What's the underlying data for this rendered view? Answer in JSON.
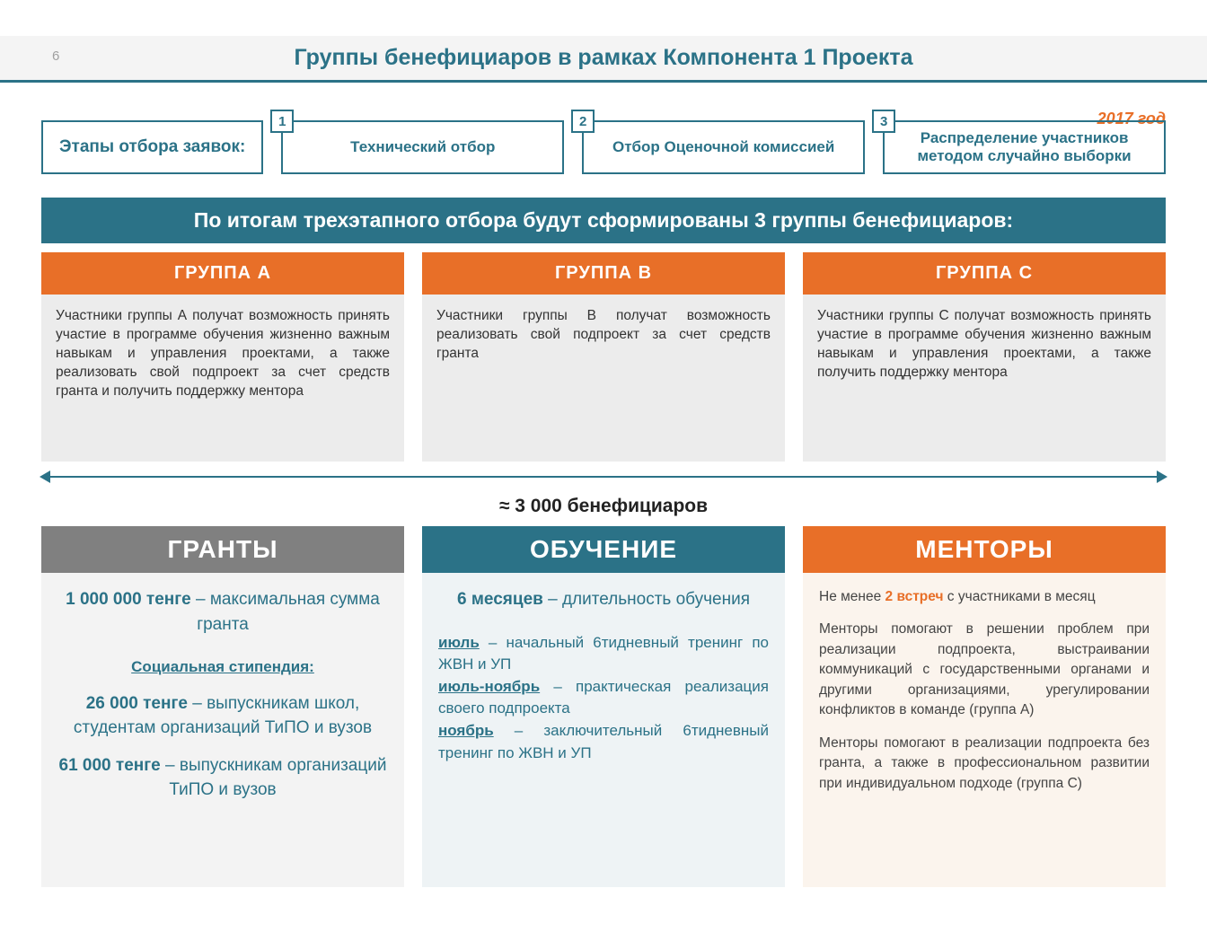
{
  "page_number": "6",
  "title": "Группы бенефициаров в рамках Компонента 1 Проекта",
  "year": "2017 год",
  "colors": {
    "teal": "#2b7287",
    "orange": "#e86f28",
    "gray": "#808080",
    "light_gray_bg": "#ececec",
    "grants_bg": "#f3f3f3",
    "training_bg": "#eef3f5",
    "mentors_bg": "#fbf4ed"
  },
  "stages": {
    "label": "Этапы отбора заявок:",
    "items": [
      {
        "num": "1",
        "text": "Технический отбор"
      },
      {
        "num": "2",
        "text": "Отбор Оценочной комиссией"
      },
      {
        "num": "3",
        "text": "Распределение участников методом случайно выборки"
      }
    ]
  },
  "banner": "По итогам трехэтапного отбора будут сформированы 3 группы бенефициаров:",
  "groups": [
    {
      "head": "ГРУППА  А",
      "body": "Участники группы А получат возможность принять участие в программе обучения жизненно важным навыкам и управления проектами, а также реализовать свой подпроект за счет средств гранта и получить поддержку ментора"
    },
    {
      "head": "ГРУППА  В",
      "body": "Участники группы В получат возможность реализовать свой подпроект за счет средств гранта"
    },
    {
      "head": "ГРУППА  С",
      "body": "Участники группы С получат возможность принять участие в программе обучения жизненно важным навыкам и управления проектами, а также получить поддержку ментора"
    }
  ],
  "arrow_label": "≈ 3 000 бенефициаров",
  "bottom": {
    "grants": {
      "head": "ГРАНТЫ",
      "line1_bold": "1 000 000 тенге",
      "line1_rest": " – максимальная сумма гранта",
      "stipend_label": "Социальная стипендия:",
      "line2_bold": "26 000 тенге",
      "line2_rest": " – выпускникам школ, студентам организаций ТиПО и вузов",
      "line3_bold": "61 000 тенге",
      "line3_rest": " – выпускникам организаций ТиПО и вузов"
    },
    "training": {
      "head": "ОБУЧЕНИЕ",
      "line1_bold": "6 месяцев",
      "line1_rest": " – длительность обучения",
      "p1_u": "июль",
      "p1_rest": " – начальный 6тидневный тренинг по ЖВН и УП",
      "p2_u": "июль-ноябрь",
      "p2_rest": " – практическая реализация своего подпроекта",
      "p3_u": "ноябрь",
      "p3_rest": " – заключительный 6тидневный тренинг по ЖВН и УП"
    },
    "mentors": {
      "head": "МЕНТОРЫ",
      "p1_pre": "Не менее ",
      "p1_bold": "2 встреч",
      "p1_post": " с участниками в месяц",
      "p2": "Менторы помогают в решении проблем при реализации подпроекта, выстраивании коммуникаций с государственными органами и другими организациями, урегулировании конфликтов в команде (группа А)",
      "p3": "Менторы помогают в реализации подпроекта без гранта, а также в профессиональном развитии при индивидуальном подходе (группа С)"
    }
  }
}
